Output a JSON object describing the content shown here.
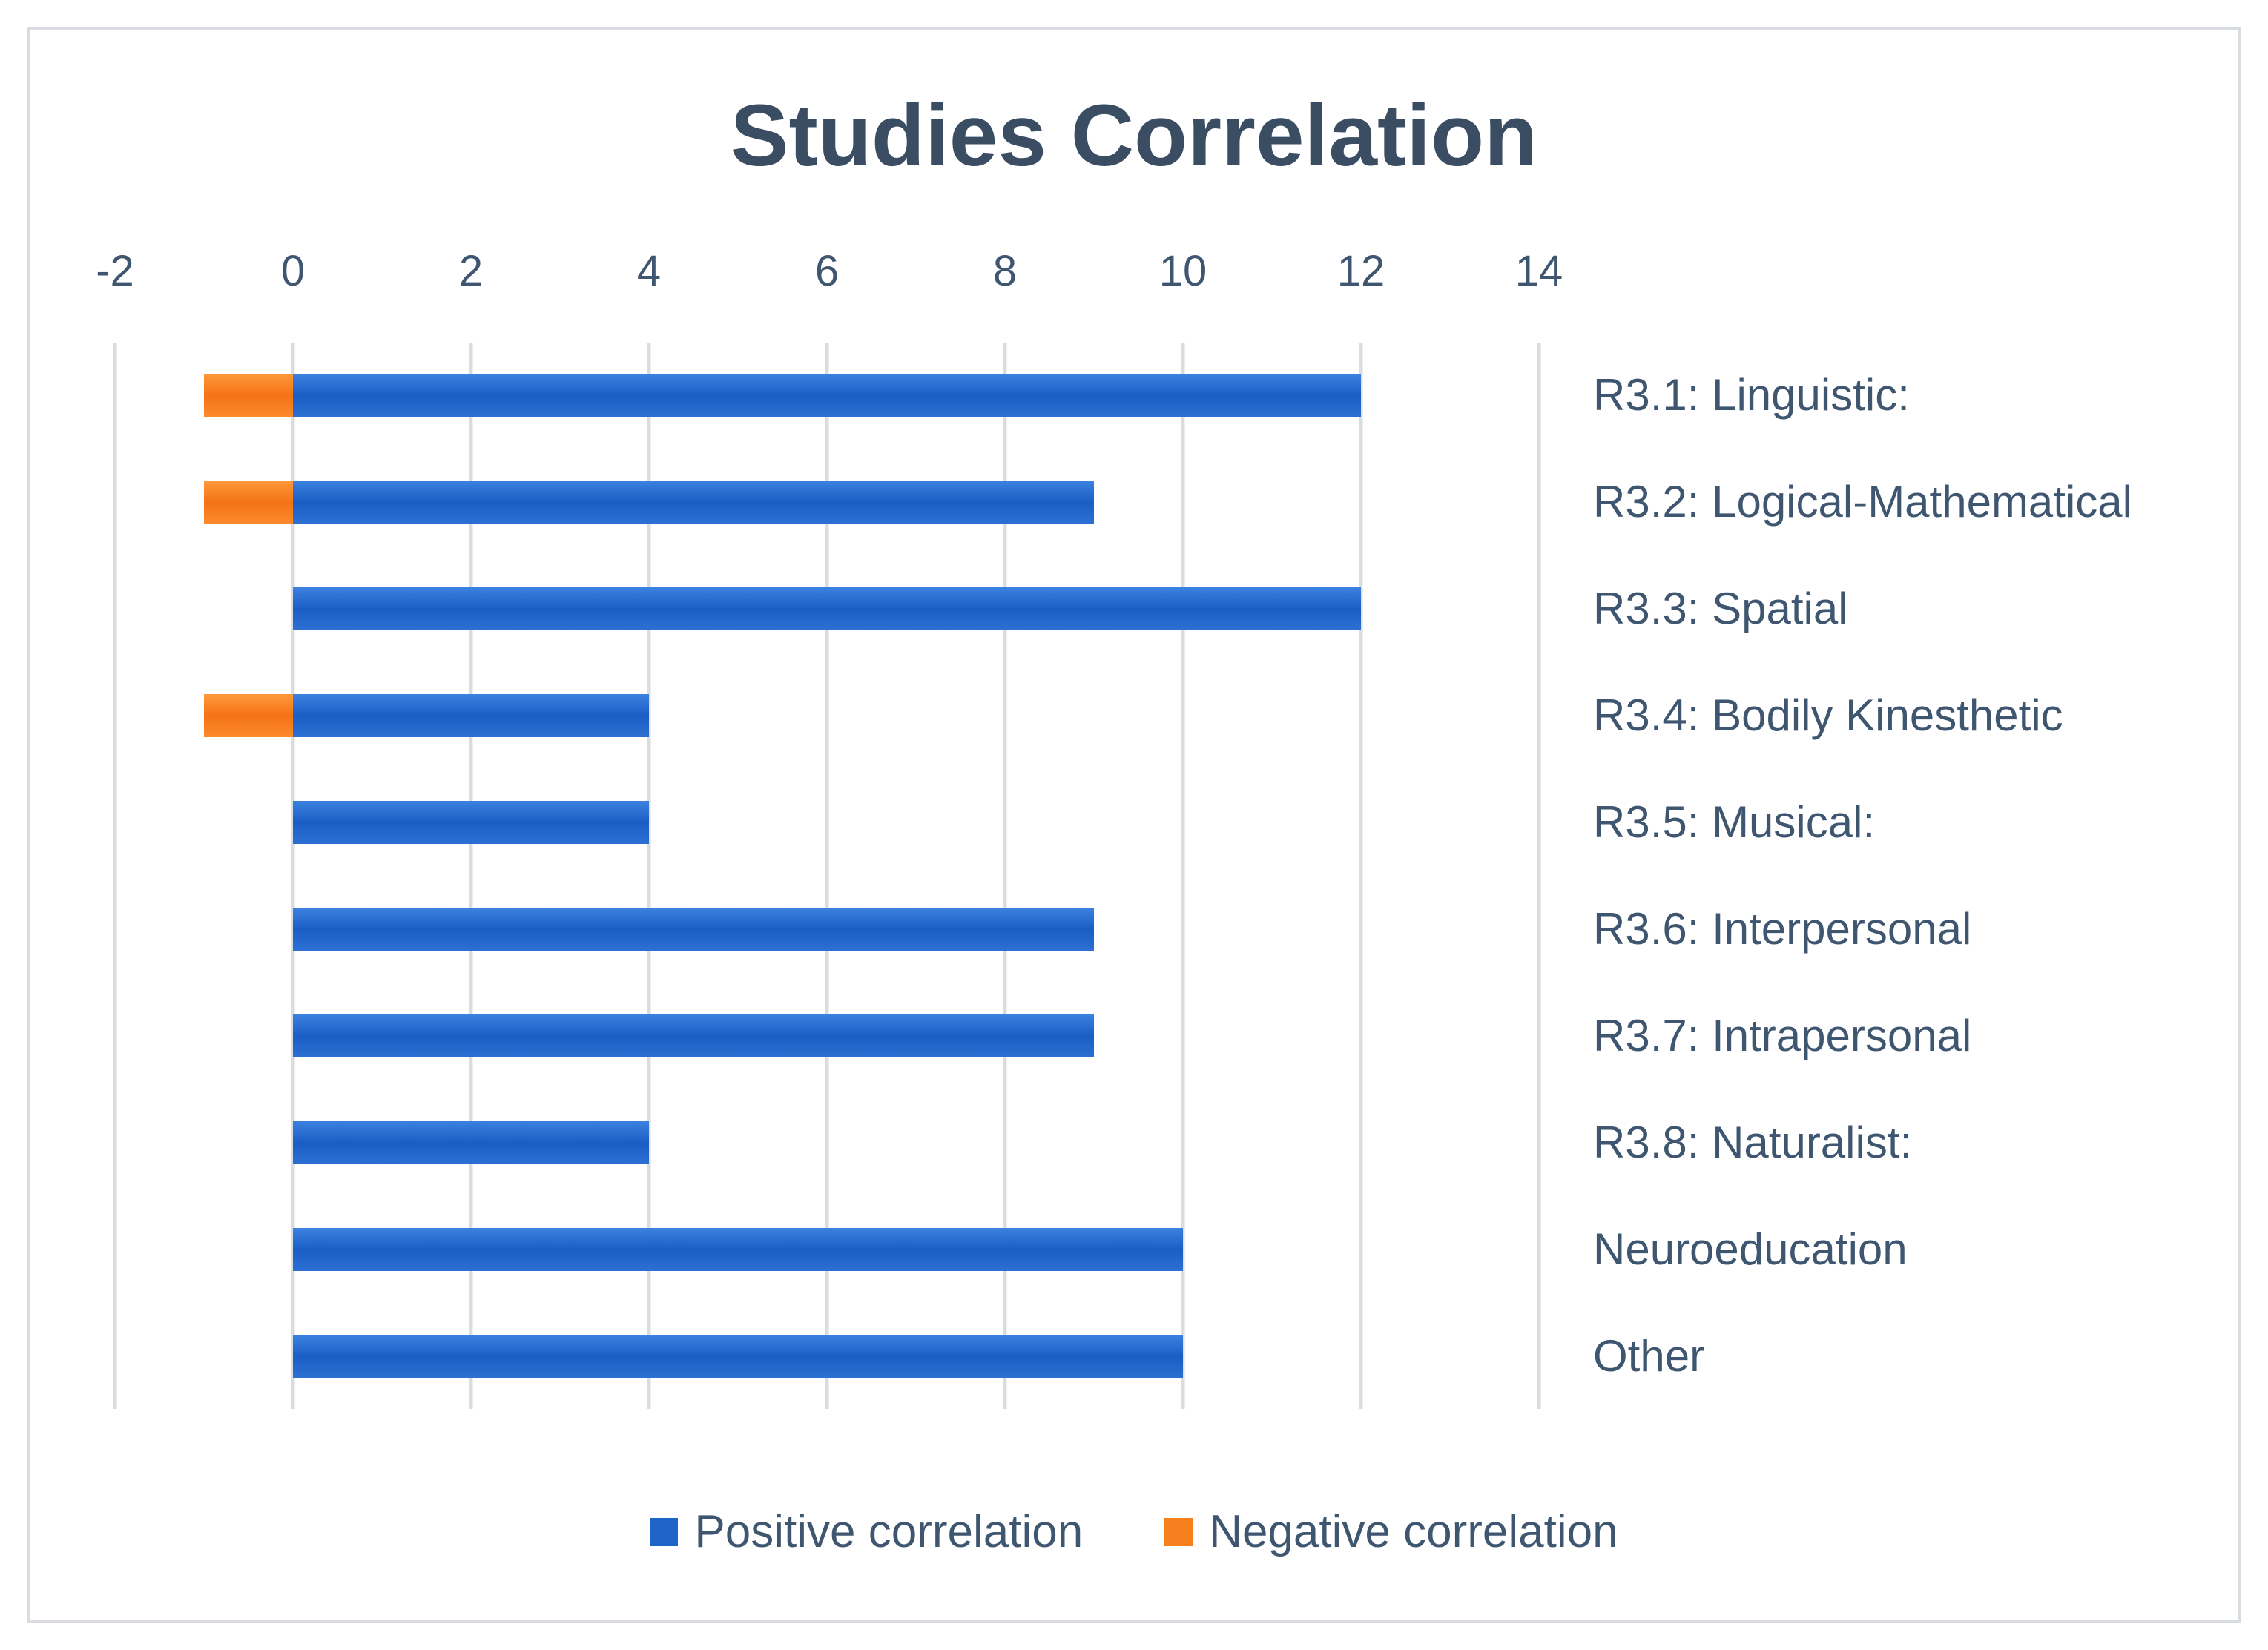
{
  "chart_data": {
    "type": "bar",
    "orientation": "horizontal",
    "stacked": true,
    "title": "Studies Correlation",
    "categories": [
      "R3.1: Linguistic:",
      "R3.2: Logical-Mathematical",
      "R3.3: Spatial",
      "R3.4: Bodily Kinesthetic",
      "R3.5: Musical:",
      "R3.6: Interpersonal",
      "R3.7: Intrapersonal",
      "R3.8: Naturalist:",
      "Neuroeducation",
      "Other"
    ],
    "series": [
      {
        "name": "Positive correlation",
        "color": "#1f64c8",
        "values": [
          12,
          9,
          12,
          4,
          4,
          9,
          9,
          4,
          10,
          10
        ]
      },
      {
        "name": "Negative correlation",
        "color": "#f77f1e",
        "values": [
          -1,
          -1,
          0,
          -1,
          0,
          0,
          0,
          0,
          0,
          0
        ]
      }
    ],
    "xlim": [
      -2,
      14
    ],
    "xticks": [
      "-2",
      "0",
      "2",
      "4",
      "6",
      "8",
      "10",
      "12",
      "14"
    ],
    "xaxis_position": "top",
    "category_label_position": "right",
    "grid": true,
    "legend_position": "bottom"
  }
}
